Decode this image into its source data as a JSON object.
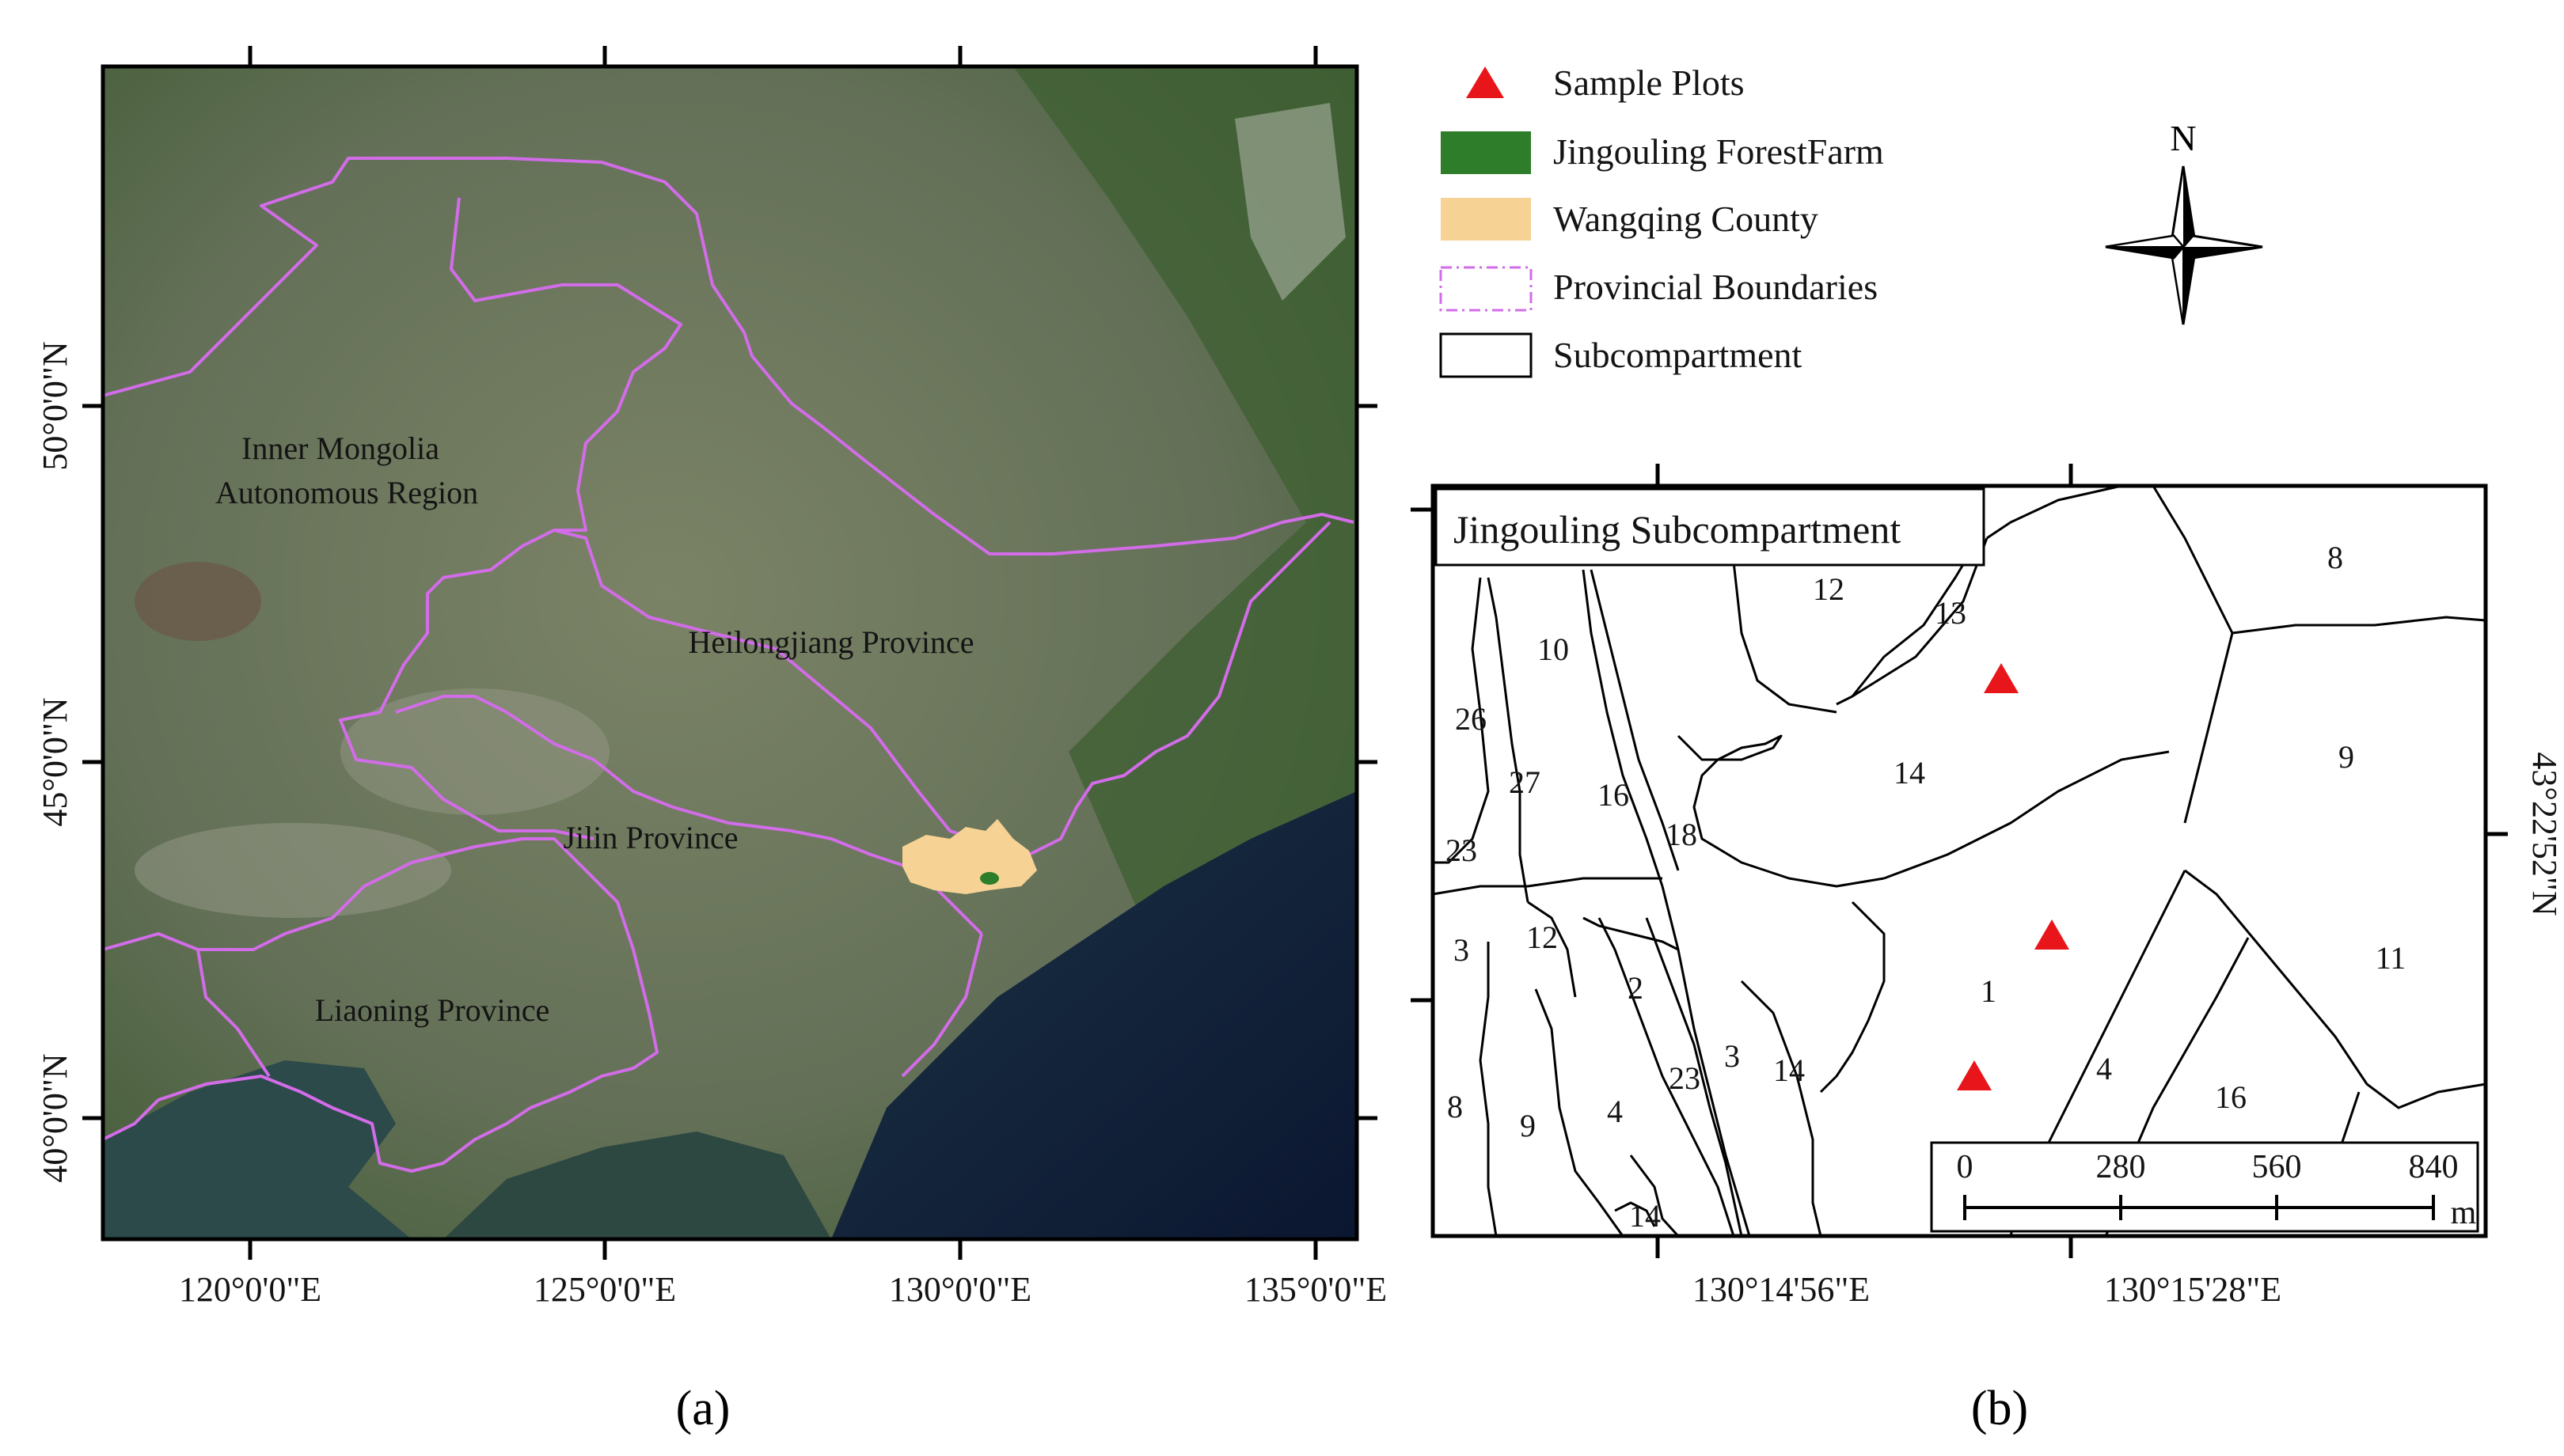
{
  "panel_a": {
    "caption": "(a)",
    "x_ticks": [
      "120°0'0\"E",
      "125°0'0\"E",
      "130°0'0\"E",
      "135°0'0\"E"
    ],
    "y_ticks": [
      "50°0'0\"N",
      "45°0'0\"N",
      "40°0'0\"N"
    ],
    "regions": {
      "inner_mongolia_line1": "Inner Mongolia",
      "inner_mongolia_line2": "Autonomous Region",
      "heilongjiang": "Heilongjiang Province",
      "jilin": "Jilin Province",
      "liaoning": "Liaoning Province"
    }
  },
  "legend": {
    "items": [
      {
        "label": "Sample Plots",
        "symbol": "red-triangle",
        "color": "#e8161b"
      },
      {
        "label": "Jingouling ForestFarm",
        "symbol": "green-fill",
        "color": "#2e7d2a"
      },
      {
        "label": "Wangqing County",
        "symbol": "tan-fill",
        "color": "#f6d394"
      },
      {
        "label": "Provincial Boundaries",
        "symbol": "dashed-violet-box",
        "color": "#d26ce8"
      },
      {
        "label": "Subcompartment",
        "symbol": "black-box",
        "color": "#000000"
      }
    ],
    "north_label": "N"
  },
  "panel_b": {
    "caption": "(b)",
    "title": "Jingouling Subcompartment",
    "x_ticks": [
      "130°14'56\"E",
      "130°15'28\"E"
    ],
    "y_tick": "43°22'52\"N",
    "scale_labels": [
      "0",
      "280",
      "560",
      "840"
    ],
    "scale_unit": "m",
    "numbers": [
      "12",
      "13",
      "8",
      "10",
      "26",
      "14",
      "9",
      "27",
      "16",
      "18",
      "23",
      "3",
      "12",
      "11",
      "2",
      "1",
      "4",
      "3",
      "23",
      "14",
      "16",
      "8",
      "9",
      "4",
      "14"
    ]
  },
  "colors": {
    "sample_plot": "#e8161b",
    "provincial_boundary": "#d26ce8",
    "forest_farm": "#2e7d2a",
    "county": "#f6d394",
    "land": "#6d7a5c",
    "sea": "#0f1c3a"
  }
}
